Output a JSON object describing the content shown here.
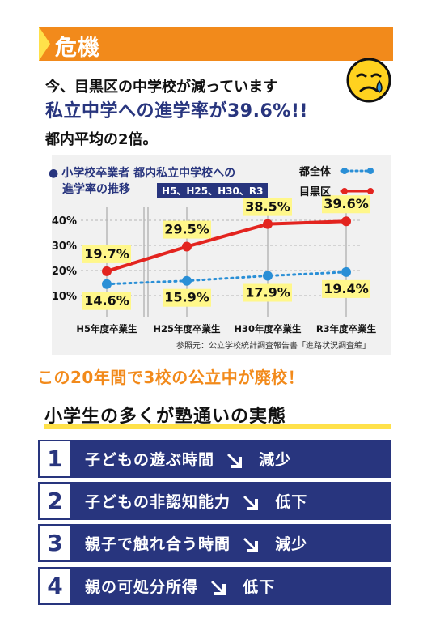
{
  "banner": {
    "label": "危機"
  },
  "intro": {
    "line1": "今、目黒区の中学校が減っています",
    "line2": "私立中学への進学率が39.6%!!",
    "line3": "都内平均の2倍。"
  },
  "chart_heading": {
    "title_line1": "小学校卒業者 都内私立中学校への",
    "title_line2": "進学率の推移",
    "years": "H5、H25、H30、R3",
    "source": "参照元：公立学校統計調査報告書「進路状況調査編」"
  },
  "chart_data": {
    "type": "line",
    "categories": [
      "H5年度卒業生",
      "H25年度卒業生",
      "H30年度卒業生",
      "R3年度卒業生"
    ],
    "y_ticks": [
      "10%",
      "20%",
      "30%",
      "40%"
    ],
    "ylim": [
      10,
      40
    ],
    "grid": true,
    "legend_position": "top-right",
    "series": [
      {
        "name": "都全体",
        "values": [
          14.6,
          15.9,
          17.9,
          19.4
        ],
        "labels": [
          "14.6%",
          "15.9%",
          "17.9%",
          "19.4%"
        ],
        "color": "#2a8fd6",
        "style": "dotted"
      },
      {
        "name": "目黒区",
        "values": [
          19.7,
          29.5,
          38.5,
          39.6
        ],
        "labels": [
          "19.7%",
          "29.5%",
          "38.5%",
          "39.6%"
        ],
        "color": "#e3241f",
        "style": "solid"
      }
    ]
  },
  "headline": "この20年間で3校の公立中が廃校！",
  "reality": {
    "title": "小学生の多くが塾通いの実態",
    "items": [
      {
        "num": "1",
        "label": "子どもの遊ぶ時間",
        "result": "減少",
        "arrow_icon": "down-right-arrow-icon"
      },
      {
        "num": "2",
        "label": "子どもの非認知能力",
        "result": "低下",
        "arrow_icon": "down-right-arrow-icon"
      },
      {
        "num": "3",
        "label": "親子で触れ合う時間",
        "result": "減少",
        "arrow_icon": "down-right-arrow-icon"
      },
      {
        "num": "4",
        "label": "親の可処分所得",
        "result": "低下",
        "arrow_icon": "down-right-arrow-icon"
      }
    ]
  },
  "colors": {
    "navy": "#28357e",
    "orange": "#f28a1b",
    "yellow": "#ffe14a",
    "red": "#e3241f",
    "blue": "#2a8fd6"
  }
}
